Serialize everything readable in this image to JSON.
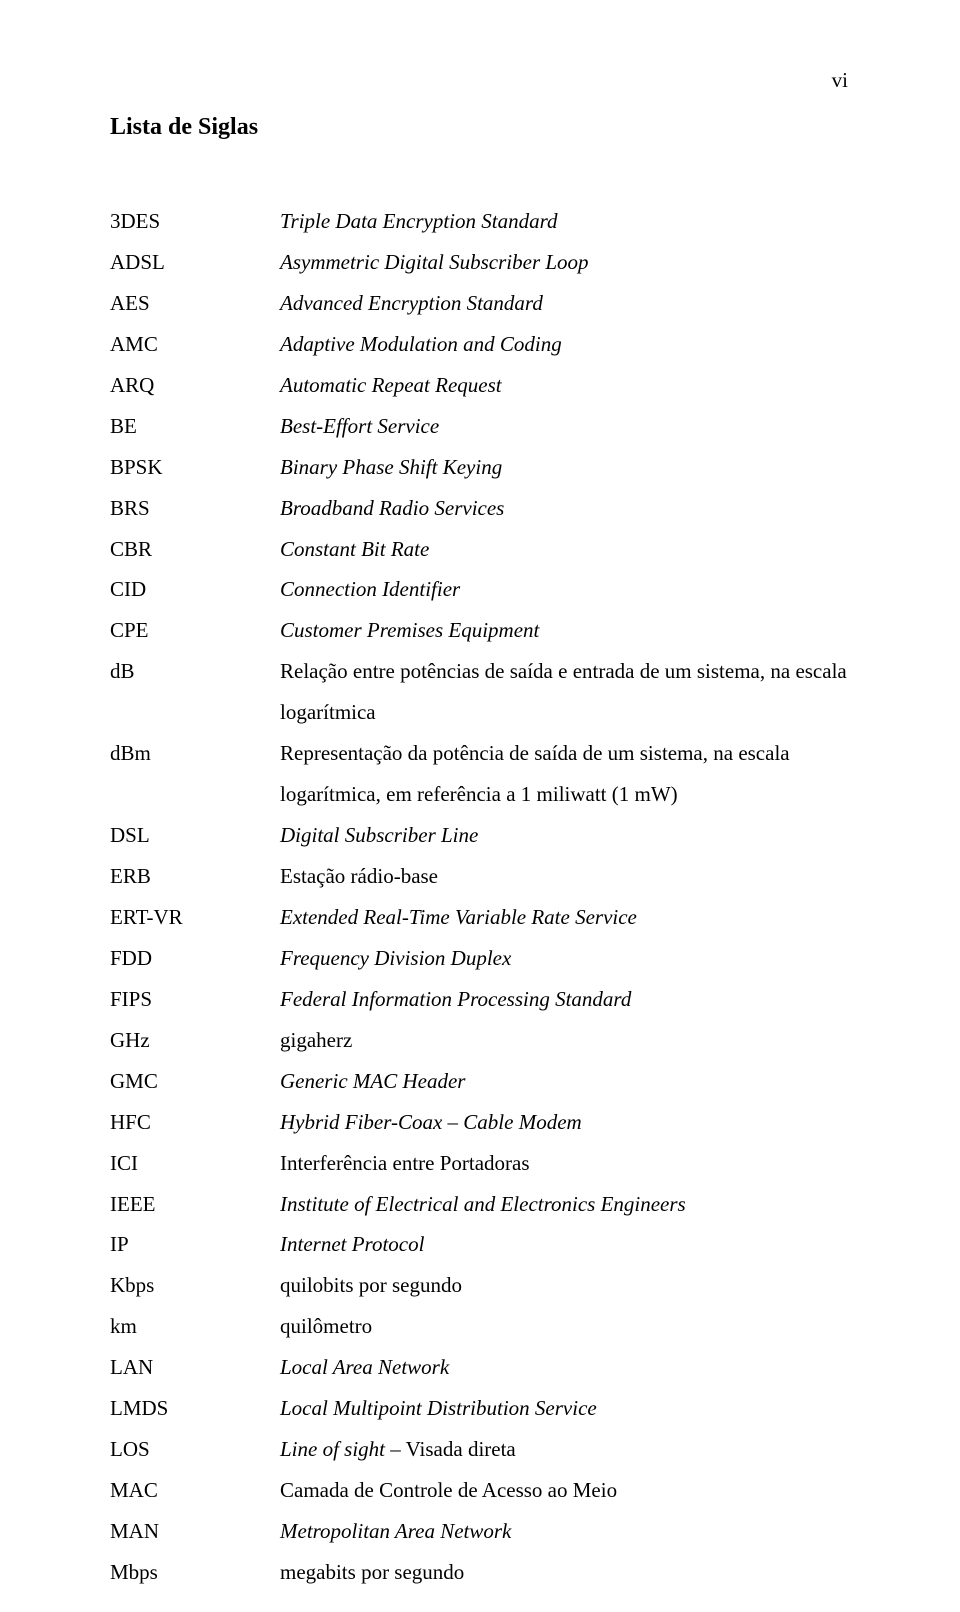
{
  "page_number": "vi",
  "title": "Lista de Siglas",
  "entries": [
    {
      "abbr": "3DES",
      "def": "Triple Data Encryption Standard",
      "italic": true
    },
    {
      "abbr": "ADSL",
      "def": "Asymmetric Digital Subscriber Loop",
      "italic": true
    },
    {
      "abbr": "AES",
      "def": "Advanced Encryption Standard",
      "italic": true
    },
    {
      "abbr": "AMC",
      "def": "Adaptive Modulation and Coding",
      "italic": true
    },
    {
      "abbr": "ARQ",
      "def": "Automatic Repeat Request",
      "italic": true
    },
    {
      "abbr": "BE",
      "def": "Best-Effort Service",
      "italic": true
    },
    {
      "abbr": "BPSK",
      "def": "Binary Phase Shift Keying",
      "italic": true
    },
    {
      "abbr": "BRS",
      "def": "Broadband Radio Services",
      "italic": true
    },
    {
      "abbr": "CBR",
      "def": "Constant Bit Rate",
      "italic": true
    },
    {
      "abbr": "CID",
      "def": "Connection Identifier",
      "italic": true
    },
    {
      "abbr": "CPE",
      "def": "Customer Premises Equipment",
      "italic": true
    },
    {
      "abbr": "dB",
      "def": "Relação entre potências de saída e entrada de um sistema, na escala",
      "cont": "logarítmica",
      "italic": false
    },
    {
      "abbr": "dBm",
      "def": "Representação da potência de saída de um sistema, na escala",
      "cont": "logarítmica, em referência a 1 miliwatt (1 mW)",
      "italic": false
    },
    {
      "abbr": "DSL",
      "def": "Digital Subscriber Line",
      "italic": true
    },
    {
      "abbr": "ERB",
      "def": "Estação rádio-base",
      "italic": false
    },
    {
      "abbr": "ERT-VR",
      "def": "Extended Real-Time Variable Rate Service",
      "italic": true
    },
    {
      "abbr": "FDD",
      "def": "Frequency Division Duplex",
      "italic": true
    },
    {
      "abbr": "FIPS",
      "def": "Federal Information Processing Standard",
      "italic": true
    },
    {
      "abbr": "GHz",
      "def": "gigaherz",
      "italic": false
    },
    {
      "abbr": "GMC",
      "def": "Generic MAC Header",
      "italic": true
    },
    {
      "abbr": "HFC",
      "def_html": "<span class=\"italic\">Hybrid Fiber-Coax – Cable Modem</span>"
    },
    {
      "abbr": "ICI",
      "def": "Interferência entre Portadoras",
      "italic": false
    },
    {
      "abbr": "IEEE",
      "def": "Institute of Electrical and Electronics Engineers",
      "italic": true
    },
    {
      "abbr": "IP",
      "def": "Internet Protocol",
      "italic": true
    },
    {
      "abbr": "Kbps",
      "def": "quilobits por segundo",
      "italic": false
    },
    {
      "abbr": "km",
      "def": "quilômetro",
      "italic": false
    },
    {
      "abbr": "LAN",
      "def": "Local Area Network",
      "italic": true
    },
    {
      "abbr": "LMDS",
      "def": "Local Multipoint Distribution Service",
      "italic": true
    },
    {
      "abbr": "LOS",
      "def_html": "<span class=\"italic\">Line of sight</span> – Visada direta"
    },
    {
      "abbr": "MAC",
      "def": "Camada de Controle de Acesso ao Meio",
      "italic": false
    },
    {
      "abbr": "MAN",
      "def": "Metropolitan Area Network",
      "italic": true
    },
    {
      "abbr": "Mbps",
      "def": "megabits por segundo",
      "italic": false
    }
  ]
}
